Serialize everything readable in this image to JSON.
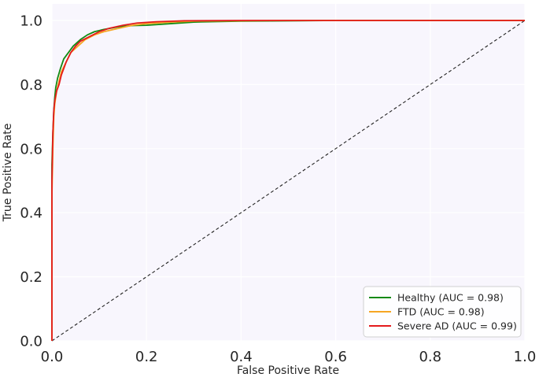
{
  "chart_data": {
    "type": "line",
    "title": "",
    "xlabel": "False Positive Rate",
    "ylabel": "True Positive Rate",
    "xlim": [
      0.0,
      1.0
    ],
    "ylim": [
      0.0,
      1.0
    ],
    "xticks": [
      "0.0",
      "0.2",
      "0.4",
      "0.6",
      "0.8",
      "1.0"
    ],
    "yticks": [
      "0.0",
      "0.2",
      "0.4",
      "0.6",
      "0.8",
      "1.0"
    ],
    "grid": true,
    "legend_position": "lower-right",
    "background_color": "#f8f6fd",
    "series": [
      {
        "name": "Healthy (AUC = 0.98)",
        "color": "#138a13",
        "x": [
          0.0,
          0.0,
          0.002,
          0.004,
          0.006,
          0.008,
          0.012,
          0.018,
          0.025,
          0.035,
          0.045,
          0.06,
          0.075,
          0.09,
          0.11,
          0.14,
          0.17,
          0.2,
          0.25,
          0.3,
          0.4,
          0.6,
          0.8,
          1.0
        ],
        "y": [
          0.0,
          0.55,
          0.65,
          0.72,
          0.76,
          0.79,
          0.82,
          0.85,
          0.88,
          0.9,
          0.92,
          0.94,
          0.955,
          0.965,
          0.972,
          0.98,
          0.984,
          0.985,
          0.99,
          0.995,
          0.998,
          1.0,
          1.0,
          1.0
        ]
      },
      {
        "name": "FTD (AUC = 0.98)",
        "color": "#f6a623",
        "x": [
          0.0,
          0.0,
          0.002,
          0.004,
          0.006,
          0.01,
          0.015,
          0.02,
          0.03,
          0.04,
          0.055,
          0.07,
          0.09,
          0.11,
          0.14,
          0.17,
          0.2,
          0.25,
          0.3,
          0.5,
          0.7,
          1.0
        ],
        "y": [
          0.0,
          0.45,
          0.6,
          0.7,
          0.74,
          0.78,
          0.81,
          0.84,
          0.87,
          0.9,
          0.92,
          0.94,
          0.955,
          0.965,
          0.975,
          0.985,
          0.99,
          0.995,
          0.998,
          1.0,
          1.0,
          1.0
        ]
      },
      {
        "name": "Severe AD (AUC = 0.99)",
        "color": "#e41a1c",
        "x": [
          0.0,
          0.0,
          0.002,
          0.004,
          0.006,
          0.01,
          0.015,
          0.02,
          0.03,
          0.04,
          0.05,
          0.06,
          0.08,
          0.1,
          0.12,
          0.15,
          0.18,
          0.22,
          0.28,
          0.4,
          0.6,
          1.0
        ],
        "y": [
          0.0,
          0.5,
          0.65,
          0.72,
          0.75,
          0.78,
          0.8,
          0.83,
          0.87,
          0.9,
          0.92,
          0.935,
          0.95,
          0.965,
          0.975,
          0.985,
          0.992,
          0.996,
          0.999,
          1.0,
          1.0,
          1.0
        ]
      }
    ],
    "reference_line": {
      "style": "dashed",
      "color": "#222222",
      "x": [
        0.0,
        1.0
      ],
      "y": [
        0.0,
        1.0
      ]
    }
  }
}
